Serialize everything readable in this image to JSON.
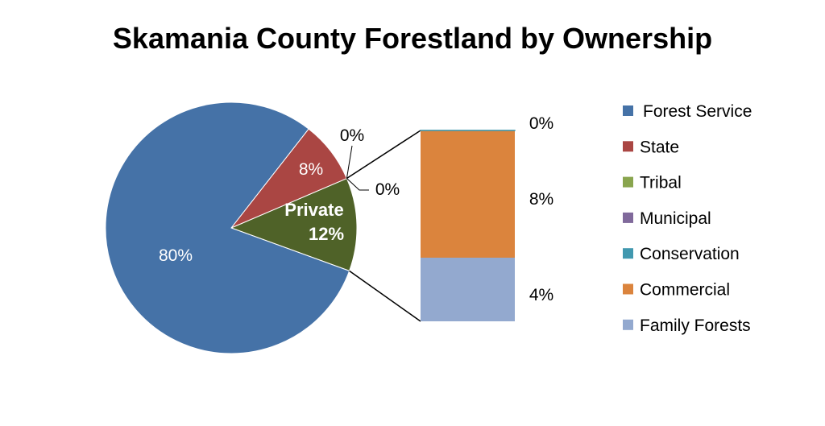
{
  "chart_data": {
    "type": "pie",
    "title": "Skamania County Forestland by Ownership",
    "main_pie": {
      "slices": [
        {
          "name": "Forest Service",
          "value": 80,
          "label": "80%",
          "color": "#4572A7"
        },
        {
          "name": "State",
          "value": 8,
          "label": "8%",
          "color": "#AA4643"
        },
        {
          "name": "Tribal",
          "value": 0,
          "label": "0%",
          "color": "#89A54E"
        },
        {
          "name": "Municipal",
          "value": 0,
          "label": "0%",
          "color": "#80699B"
        },
        {
          "name": "Private",
          "value": 12,
          "label": "12%",
          "color": "#4F6228"
        }
      ]
    },
    "private_group_label": "Private",
    "secondary_bar": {
      "segments": [
        {
          "name": "Conservation",
          "value": 0,
          "label": "0%",
          "color": "#4198AF"
        },
        {
          "name": "Commercial",
          "value": 8,
          "label": "8%",
          "color": "#DB843D"
        },
        {
          "name": "Family Forests",
          "value": 4,
          "label": "4%",
          "color": "#93A9CF"
        }
      ]
    },
    "legend": {
      "placement": "right",
      "entries": [
        {
          "name": "Forest Service",
          "color": "#4572A7"
        },
        {
          "name": "State",
          "color": "#AA4643"
        },
        {
          "name": "Tribal",
          "color": "#89A54E"
        },
        {
          "name": "Municipal",
          "color": "#80699B"
        },
        {
          "name": "Conservation",
          "color": "#4198AF"
        },
        {
          "name": "Commercial",
          "color": "#DB843D"
        },
        {
          "name": "Family Forests",
          "color": "#93A9CF"
        }
      ]
    }
  }
}
